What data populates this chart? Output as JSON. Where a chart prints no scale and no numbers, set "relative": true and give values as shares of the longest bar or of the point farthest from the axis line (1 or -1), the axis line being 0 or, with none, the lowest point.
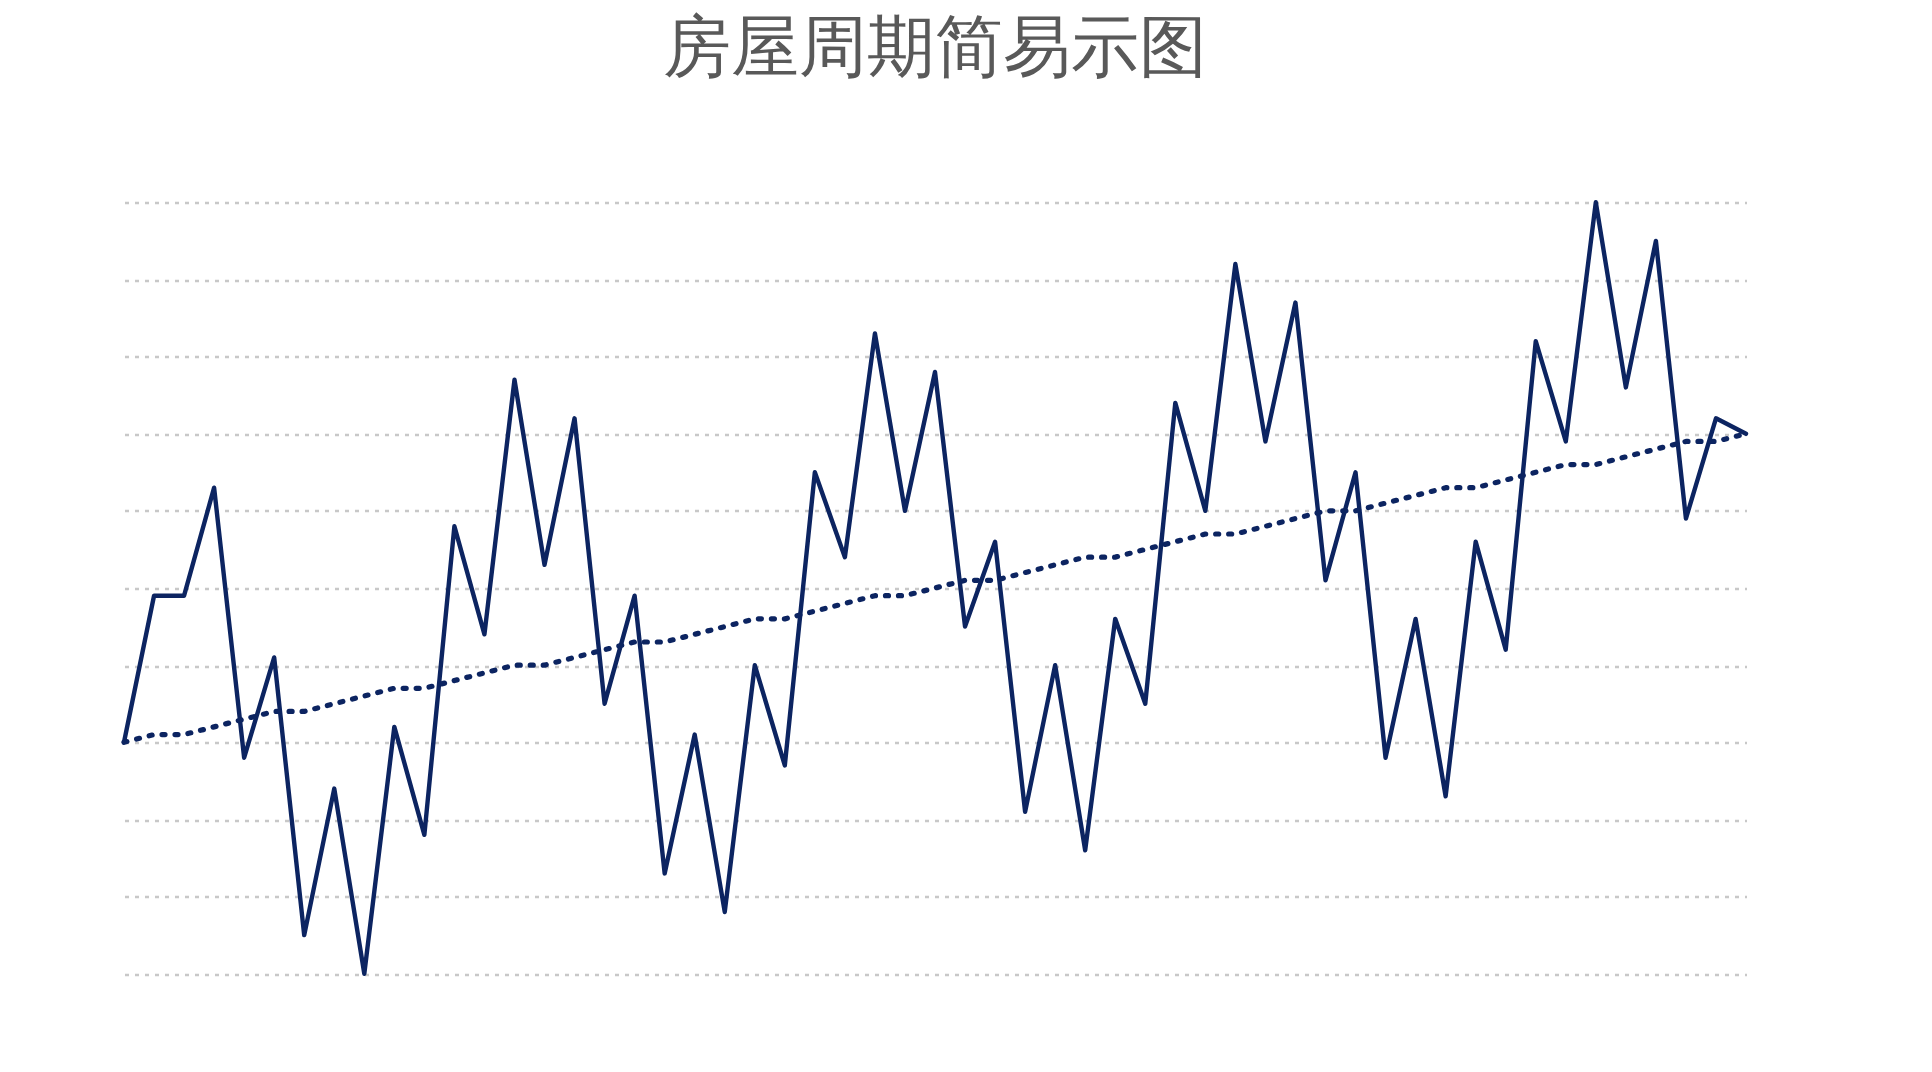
{
  "chart_data": {
    "type": "line",
    "title": "房屋周期简易示图",
    "relative": true,
    "grid": "y",
    "tick_labels": false,
    "categories": [
      null,
      null,
      null,
      null,
      null,
      null,
      null,
      null,
      null,
      null,
      null,
      null,
      null,
      null,
      null,
      null,
      null,
      null,
      null,
      null,
      null,
      null,
      null,
      null,
      null,
      null,
      null,
      null,
      null,
      null,
      null,
      null,
      null,
      null,
      null,
      null,
      null,
      null,
      null,
      null,
      null,
      null,
      null,
      null,
      null,
      null,
      null,
      null,
      null,
      null,
      null,
      null,
      null,
      null,
      null
    ],
    "series": [
      {
        "color": "#0c2461",
        "line_style": "solid",
        "values": [
          0.3,
          0.49,
          0.49,
          0.63,
          0.28,
          0.41,
          0.05,
          0.24,
          0.0,
          0.32,
          0.18,
          0.58,
          0.44,
          0.77,
          0.53,
          0.72,
          0.35,
          0.49,
          0.13,
          0.31,
          0.08,
          0.4,
          0.27,
          0.65,
          0.54,
          0.83,
          0.6,
          0.78,
          0.45,
          0.56,
          0.21,
          0.4,
          0.16,
          0.46,
          0.35,
          0.74,
          0.6,
          0.92,
          0.69,
          0.87,
          0.51,
          0.65,
          0.28,
          0.46,
          0.23,
          0.56,
          0.42,
          0.82,
          0.69,
          1.0,
          0.76,
          0.95,
          0.59,
          0.72,
          0.7
        ]
      },
      {
        "color": "#0c2461",
        "line_style": "dotted",
        "values": [
          0.3,
          0.31,
          0.31,
          0.32,
          0.33,
          0.34,
          0.34,
          0.35,
          0.36,
          0.37,
          0.37,
          0.38,
          0.39,
          0.4,
          0.4,
          0.41,
          0.42,
          0.43,
          0.43,
          0.44,
          0.45,
          0.46,
          0.46,
          0.47,
          0.48,
          0.49,
          0.49,
          0.5,
          0.51,
          0.51,
          0.52,
          0.53,
          0.54,
          0.54,
          0.55,
          0.56,
          0.57,
          0.57,
          0.58,
          0.59,
          0.6,
          0.6,
          0.61,
          0.62,
          0.63,
          0.63,
          0.64,
          0.65,
          0.66,
          0.66,
          0.67,
          0.68,
          0.69,
          0.69,
          0.7
        ]
      }
    ]
  }
}
